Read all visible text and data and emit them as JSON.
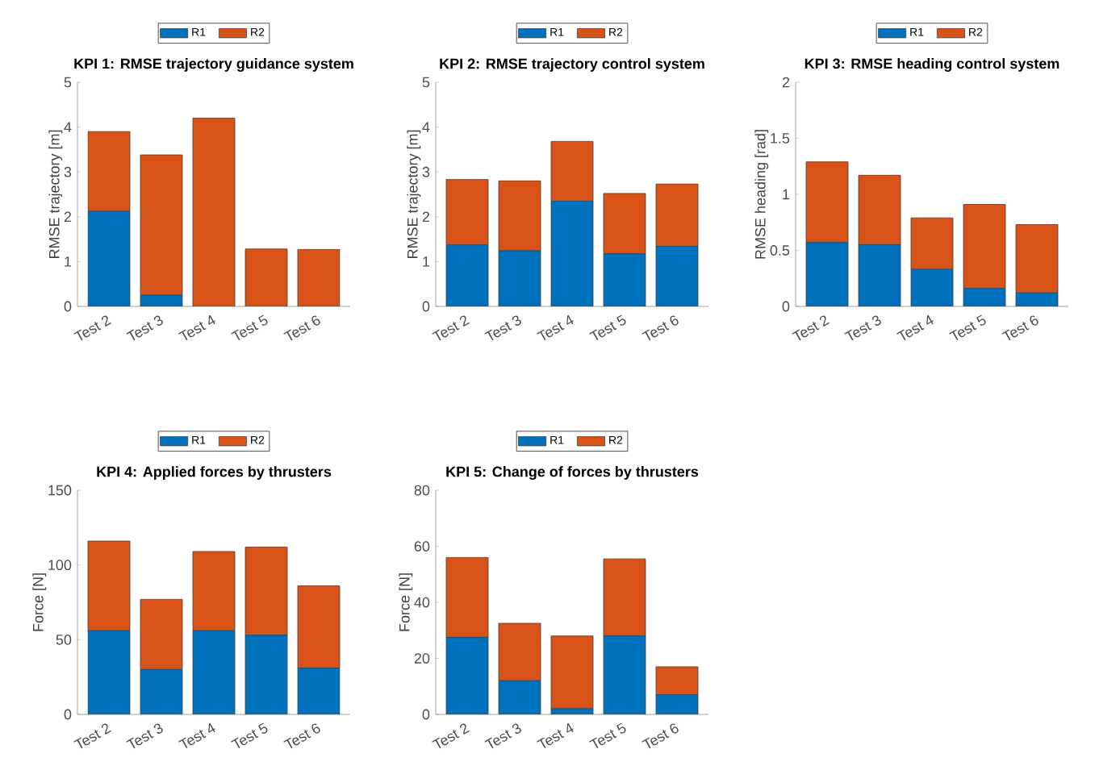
{
  "chart_data": [
    {
      "type": "bar",
      "stacked": true,
      "legend": "top",
      "title": "KPI 1: RMSE trajectory guidance system",
      "ylabel": "RMSE trajectory [m]",
      "categories": [
        "Test 2",
        "Test 3",
        "Test 4",
        "Test 5",
        "Test 6"
      ],
      "ylim": [
        0,
        5
      ],
      "yticks": [
        0,
        1,
        2,
        3,
        4,
        5
      ],
      "series": [
        {
          "name": "R1",
          "color": "#0072bd",
          "values": [
            2.12,
            0.25,
            0,
            0,
            0
          ]
        },
        {
          "name": "R2",
          "color": "#d95319",
          "values": [
            1.78,
            3.13,
            4.2,
            1.28,
            1.27
          ]
        }
      ]
    },
    {
      "type": "bar",
      "stacked": true,
      "legend": "top",
      "title": "KPI 2: RMSE trajectory control system",
      "ylabel": "RMSE trajectory [m]",
      "categories": [
        "Test 2",
        "Test 3",
        "Test 4",
        "Test 5",
        "Test 6"
      ],
      "ylim": [
        0,
        5
      ],
      "yticks": [
        0,
        1,
        2,
        3,
        4,
        5
      ],
      "series": [
        {
          "name": "R1",
          "color": "#0072bd",
          "values": [
            1.37,
            1.24,
            2.35,
            1.17,
            1.34
          ]
        },
        {
          "name": "R2",
          "color": "#d95319",
          "values": [
            1.46,
            1.56,
            1.33,
            1.35,
            1.39
          ]
        }
      ]
    },
    {
      "type": "bar",
      "stacked": true,
      "legend": "top",
      "title": "KPI 3: RMSE heading control system",
      "ylabel": "RMSE heading [rad]",
      "categories": [
        "Test 2",
        "Test 3",
        "Test 4",
        "Test 5",
        "Test 6"
      ],
      "ylim": [
        0,
        2
      ],
      "yticks": [
        0,
        0.5,
        1,
        1.5,
        2
      ],
      "series": [
        {
          "name": "R1",
          "color": "#0072bd",
          "values": [
            0.57,
            0.55,
            0.33,
            0.16,
            0.12
          ]
        },
        {
          "name": "R2",
          "color": "#d95319",
          "values": [
            0.72,
            0.62,
            0.46,
            0.75,
            0.61
          ]
        }
      ]
    },
    {
      "type": "bar",
      "stacked": true,
      "legend": "top",
      "title": "KPI 4: Applied forces by thrusters",
      "ylabel": "Force [N]",
      "categories": [
        "Test 2",
        "Test 3",
        "Test 4",
        "Test 5",
        "Test 6"
      ],
      "ylim": [
        0,
        150
      ],
      "yticks": [
        0,
        50,
        100,
        150
      ],
      "series": [
        {
          "name": "R1",
          "color": "#0072bd",
          "values": [
            56,
            30,
            56,
            53,
            31
          ]
        },
        {
          "name": "R2",
          "color": "#d95319",
          "values": [
            60,
            47,
            53,
            59,
            55
          ]
        }
      ]
    },
    {
      "type": "bar",
      "stacked": true,
      "legend": "top",
      "title": "KPI 5: Change of forces by thrusters",
      "ylabel": "Force [N]",
      "categories": [
        "Test 2",
        "Test 3",
        "Test 4",
        "Test 5",
        "Test 6"
      ],
      "ylim": [
        0,
        80
      ],
      "yticks": [
        0,
        20,
        40,
        60,
        80
      ],
      "series": [
        {
          "name": "R1",
          "color": "#0072bd",
          "values": [
            27.5,
            12,
            2,
            28,
            7
          ]
        },
        {
          "name": "R2",
          "color": "#d95319",
          "values": [
            28.5,
            20.5,
            26,
            27.5,
            10
          ]
        }
      ]
    }
  ]
}
